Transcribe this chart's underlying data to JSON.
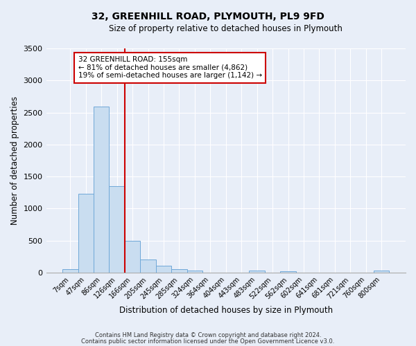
{
  "title": "32, GREENHILL ROAD, PLYMOUTH, PL9 9FD",
  "subtitle": "Size of property relative to detached houses in Plymouth",
  "xlabel": "Distribution of detached houses by size in Plymouth",
  "ylabel": "Number of detached properties",
  "bar_labels": [
    "7sqm",
    "47sqm",
    "86sqm",
    "126sqm",
    "166sqm",
    "205sqm",
    "245sqm",
    "285sqm",
    "324sqm",
    "364sqm",
    "404sqm",
    "443sqm",
    "483sqm",
    "522sqm",
    "562sqm",
    "602sqm",
    "641sqm",
    "681sqm",
    "721sqm",
    "760sqm",
    "800sqm"
  ],
  "bar_values": [
    50,
    1230,
    2590,
    1350,
    500,
    200,
    110,
    50,
    30,
    0,
    0,
    0,
    35,
    0,
    20,
    0,
    0,
    0,
    0,
    0,
    35
  ],
  "bar_color": "#c9ddf0",
  "bar_edge_color": "#6fa8d8",
  "ylim": [
    0,
    3500
  ],
  "yticks": [
    0,
    500,
    1000,
    1500,
    2000,
    2500,
    3000,
    3500
  ],
  "property_line_idx": 3.5,
  "property_line_color": "#cc0000",
  "annotation_title": "32 GREENHILL ROAD: 155sqm",
  "annotation_line1": "← 81% of detached houses are smaller (4,862)",
  "annotation_line2": "19% of semi-detached houses are larger (1,142) →",
  "annotation_box_color": "#cc0000",
  "footnote1": "Contains HM Land Registry data © Crown copyright and database right 2024.",
  "footnote2": "Contains public sector information licensed under the Open Government Licence v3.0.",
  "background_color": "#e8eef8",
  "plot_bg_color": "#e8eef8",
  "grid_color": "#ffffff",
  "title_fontsize": 10,
  "subtitle_fontsize": 8.5,
  "xlabel_fontsize": 8.5,
  "ylabel_fontsize": 8.5,
  "xtick_fontsize": 7,
  "ytick_fontsize": 8
}
